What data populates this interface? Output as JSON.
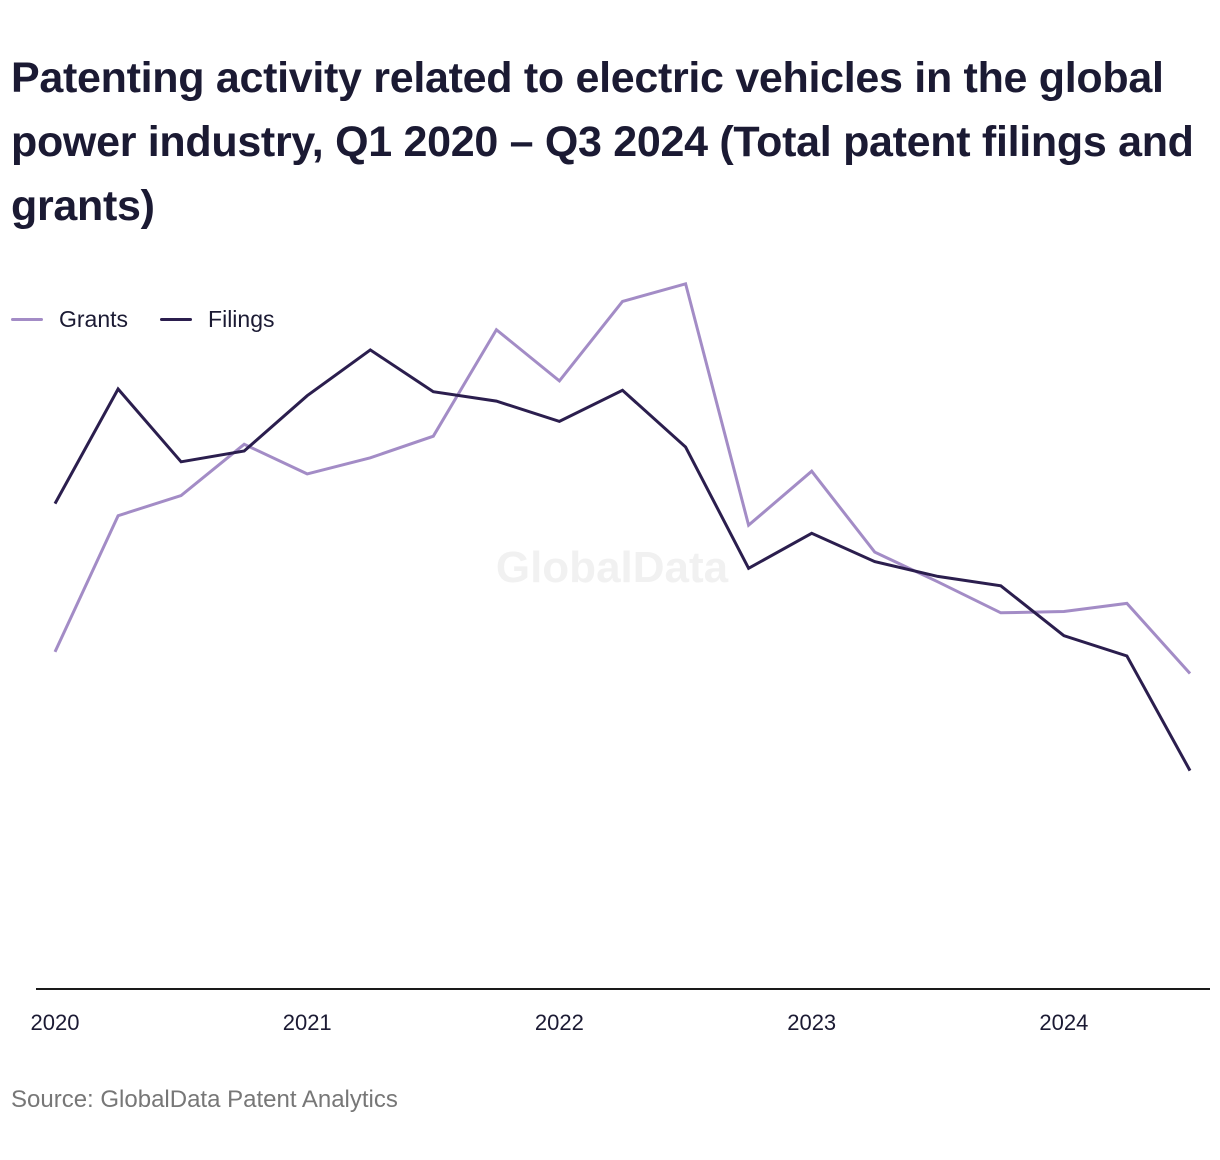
{
  "title": "Patenting activity related to electric vehicles in the global power industry, Q1 2020 – Q3 2024 (Total patent filings and grants)",
  "source": "Source: GlobalData Patent Analytics",
  "watermark": "GlobalData",
  "colors": {
    "grants": "#a38cc6",
    "filings": "#2b1e4e",
    "axis": "#1a1a1a",
    "watermark": "#f1f1f1"
  },
  "chart_data": {
    "type": "line",
    "x": [
      "Q1 2020",
      "Q2 2020",
      "Q3 2020",
      "Q4 2020",
      "Q1 2021",
      "Q2 2021",
      "Q3 2021",
      "Q4 2021",
      "Q1 2022",
      "Q2 2022",
      "Q3 2022",
      "Q4 2022",
      "Q1 2023",
      "Q2 2023",
      "Q3 2023",
      "Q4 2023",
      "Q1 2024",
      "Q2 2024",
      "Q3 2024"
    ],
    "x_tick_labels": [
      "2020",
      "2021",
      "2022",
      "2023",
      "2024"
    ],
    "x_tick_positions": [
      0,
      4,
      8,
      12,
      16
    ],
    "series": [
      {
        "name": "Grants",
        "values": [
          30,
          40.1,
          41.6,
          45.4,
          43.2,
          44.4,
          46.0,
          53.9,
          50.1,
          56.0,
          57.3,
          39.4,
          43.4,
          37.4,
          35.2,
          32.9,
          33.0,
          33.6,
          28.4
        ]
      },
      {
        "name": "Filings",
        "values": [
          41.0,
          49.5,
          44.1,
          44.9,
          49.0,
          52.4,
          49.3,
          48.6,
          47.1,
          49.4,
          45.2,
          36.2,
          38.8,
          36.7,
          35.6,
          34.9,
          31.2,
          29.7,
          21.2
        ]
      }
    ],
    "ylim": [
      5,
      65
    ],
    "grid": false,
    "legend_position": "top-left"
  }
}
